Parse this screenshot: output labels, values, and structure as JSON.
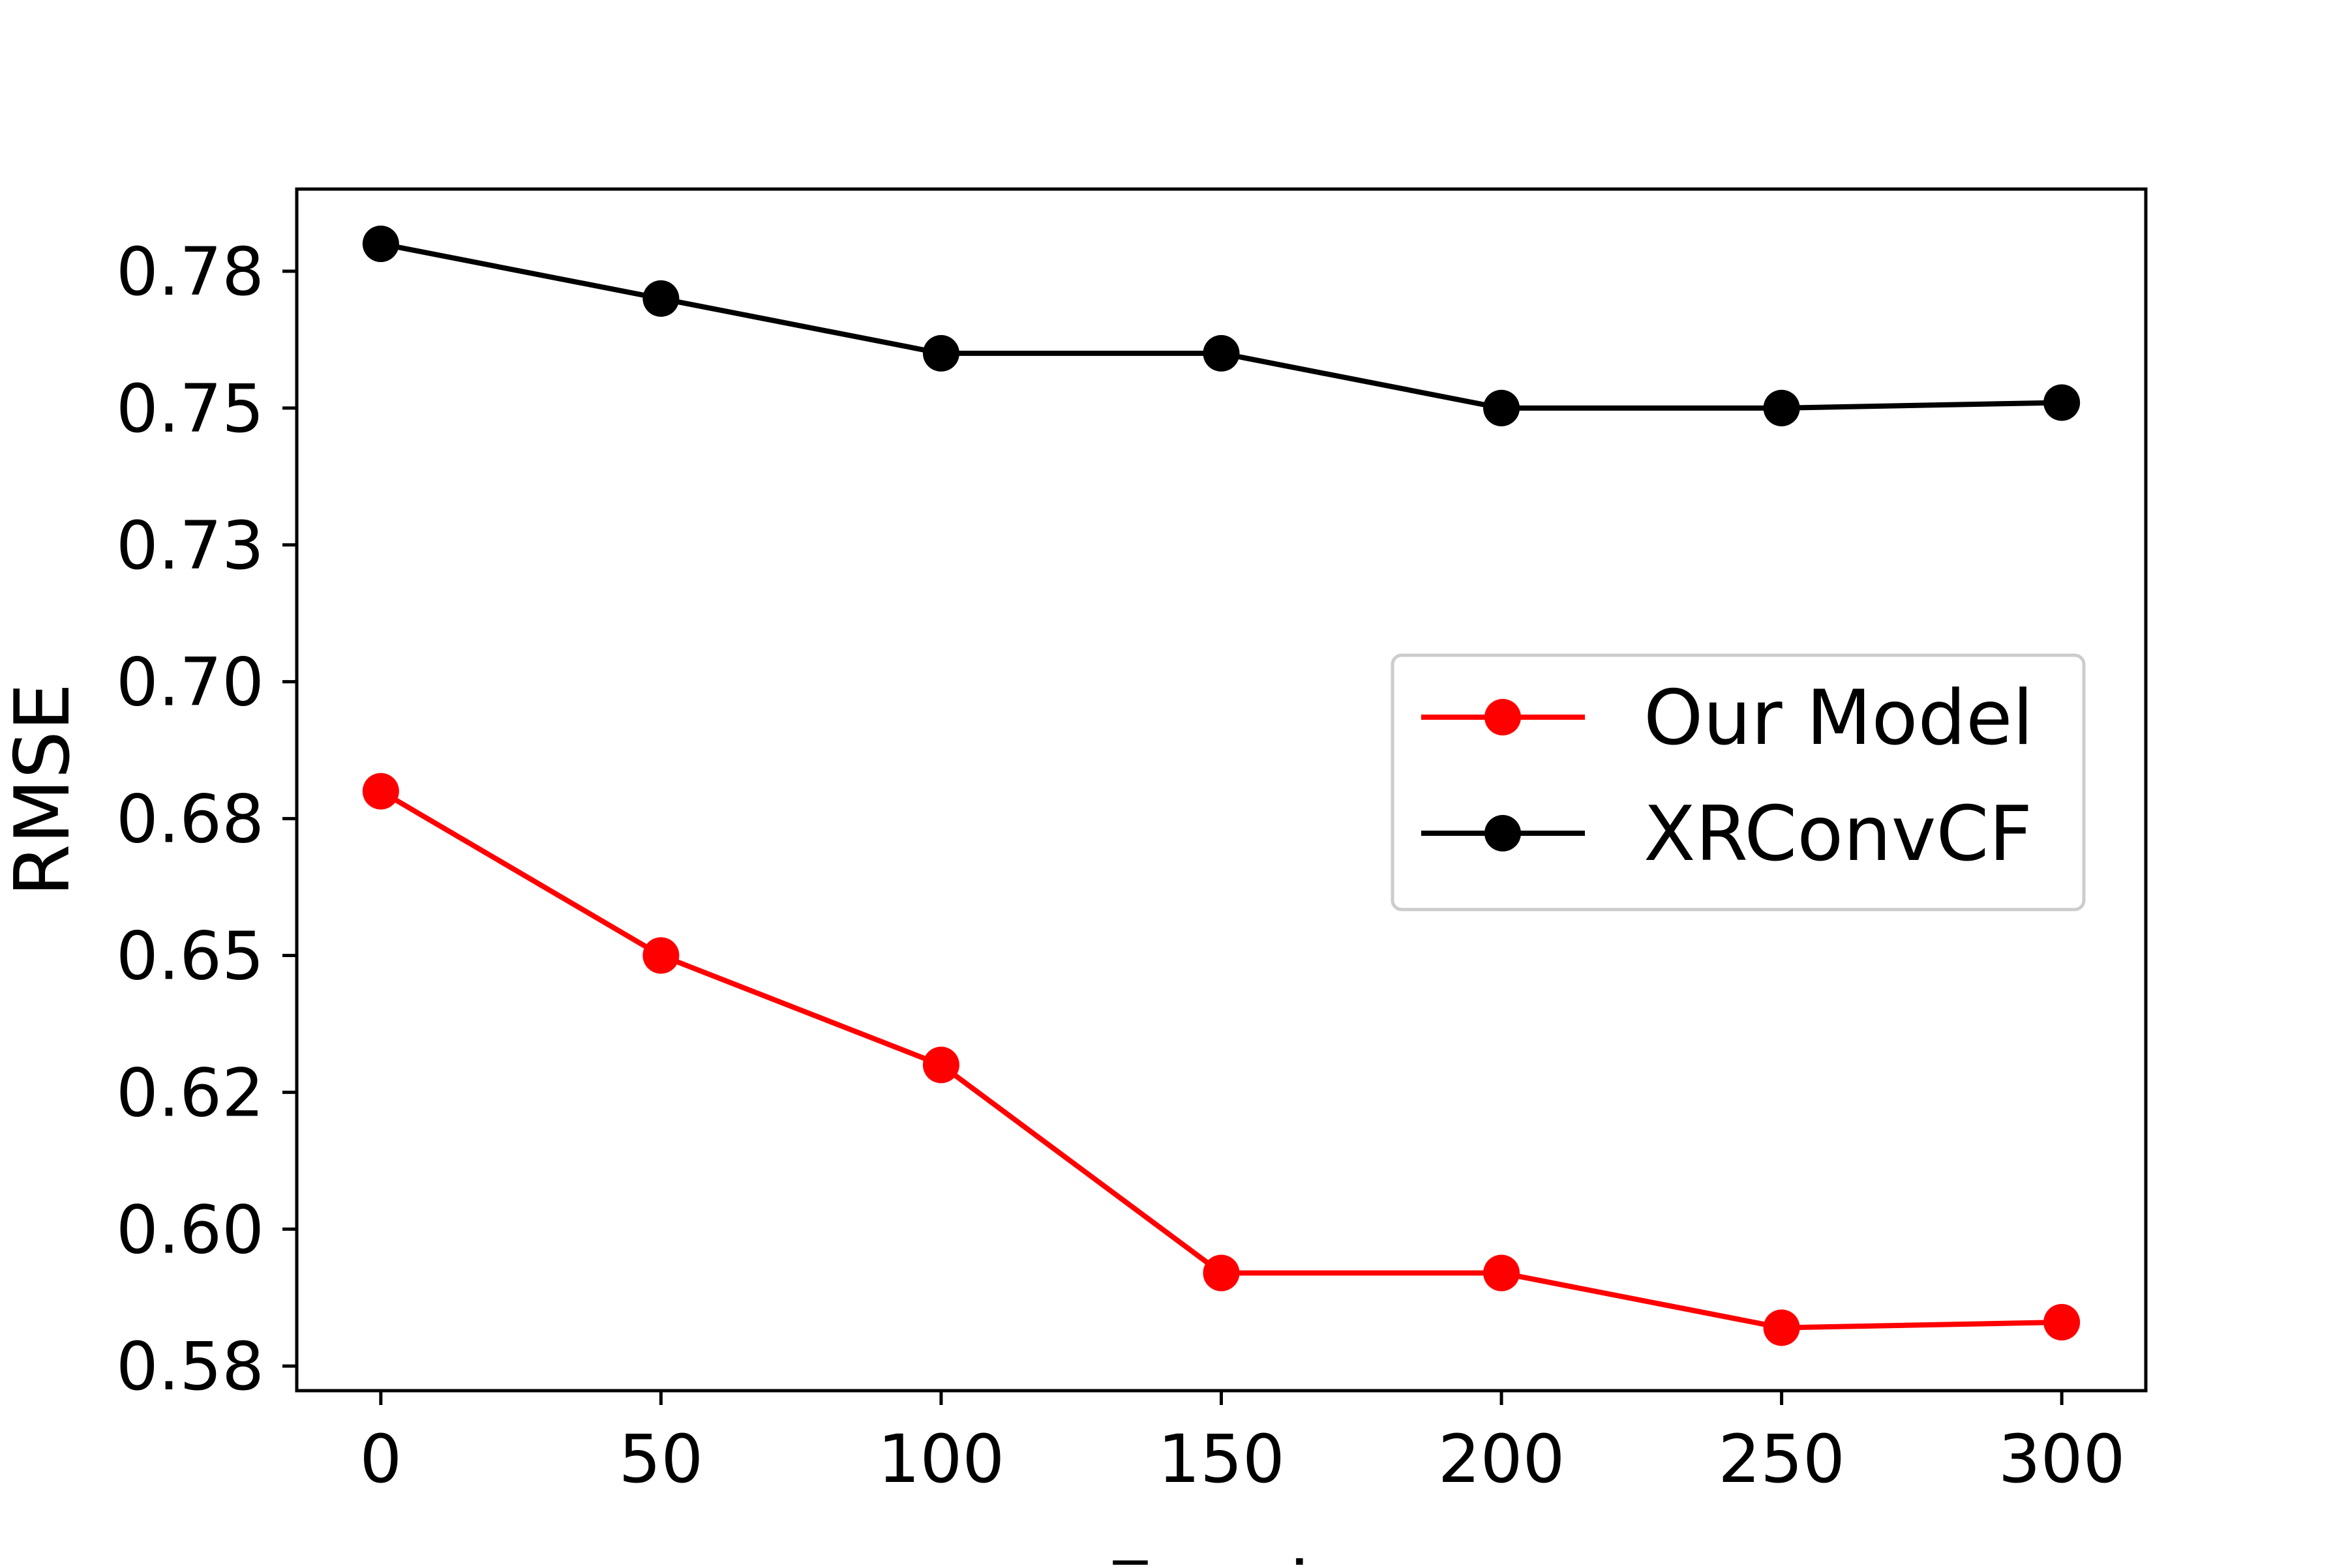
{
  "chart_data": {
    "type": "line",
    "title": "",
    "xlabel": "Epoch",
    "ylabel": "RMSE",
    "x": [
      0,
      50,
      100,
      150,
      200,
      250,
      300
    ],
    "x_ticks": [
      0,
      50,
      100,
      150,
      200,
      250,
      300
    ],
    "x_tick_labels": [
      "0",
      "50",
      "100",
      "150",
      "200",
      "250",
      "300"
    ],
    "y_ticks": [
      0.5775,
      0.6025,
      0.6275,
      0.6525,
      0.6775,
      0.7025,
      0.7275,
      0.7525,
      0.7775
    ],
    "y_tick_labels": [
      "0.58",
      "0.60",
      "0.62",
      "0.65",
      "0.68",
      "0.70",
      "0.73",
      "0.75",
      "0.78"
    ],
    "xlim": [
      -15,
      315
    ],
    "ylim": [
      0.573,
      0.7925
    ],
    "grid": false,
    "legend_position": "center-right",
    "series": [
      {
        "name": "Our Model",
        "color": "#ff0000",
        "marker": "circle",
        "values": [
          0.6825,
          0.6525,
          0.6325,
          0.5945,
          0.5945,
          0.5845,
          0.5855
        ]
      },
      {
        "name": "XRConvCF",
        "color": "#000000",
        "marker": "circle",
        "values": [
          0.7825,
          0.7725,
          0.7625,
          0.7625,
          0.7525,
          0.7525,
          0.7535
        ]
      }
    ]
  }
}
